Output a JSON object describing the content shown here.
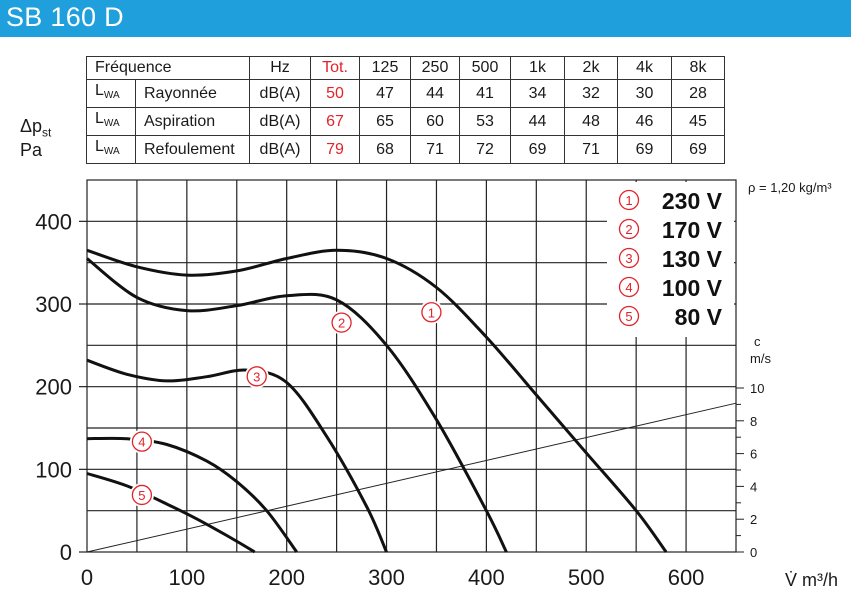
{
  "title": "SB 160 D",
  "table": {
    "header": [
      "Fréquence",
      "Hz",
      "Tot.",
      "125",
      "250",
      "500",
      "1k",
      "2k",
      "4k",
      "8k"
    ],
    "rows": [
      {
        "sym": "L",
        "sub": "WA",
        "name": "Rayonnée",
        "unit": "dB(A)",
        "tot": "50",
        "values": [
          "47",
          "44",
          "41",
          "34",
          "32",
          "30",
          "28"
        ]
      },
      {
        "sym": "L",
        "sub": "WA",
        "name": "Aspiration",
        "unit": "dB(A)",
        "tot": "67",
        "values": [
          "65",
          "60",
          "53",
          "44",
          "48",
          "46",
          "45"
        ]
      },
      {
        "sym": "L",
        "sub": "WA",
        "name": "Refoulement",
        "unit": "dB(A)",
        "tot": "79",
        "values": [
          "68",
          "71",
          "72",
          "69",
          "71",
          "69",
          "69"
        ]
      }
    ]
  },
  "y_axis_label": {
    "symbol": "Δp",
    "sub": "st",
    "unit": "Pa"
  },
  "density_note": "ρ = 1,20 kg/m³",
  "x_axis_label": "V̇ m³/h",
  "velocity_axis_label": {
    "symbol": "c",
    "unit": "m/s"
  },
  "colors": {
    "title_bar": "#1f9fdc",
    "accent_red": "#e0242b",
    "curve": "#111111",
    "grid": "#222222"
  },
  "chart_data": {
    "type": "line",
    "xlabel": "V̇ m³/h",
    "ylabel": "Δpst Pa",
    "xlim": [
      0,
      650
    ],
    "ylim": [
      0,
      450
    ],
    "x_ticks": [
      0,
      100,
      200,
      300,
      400,
      500,
      600
    ],
    "y_ticks": [
      0,
      100,
      200,
      300,
      400
    ],
    "grid": true,
    "legend_position": "top-right",
    "series": [
      {
        "name": "230 V",
        "marker": "1",
        "x": [
          0,
          50,
          100,
          150,
          200,
          250,
          300,
          350,
          400,
          450,
          500,
          550,
          580
        ],
        "y": [
          365,
          345,
          335,
          340,
          355,
          365,
          355,
          320,
          260,
          190,
          120,
          50,
          0
        ]
      },
      {
        "name": "170 V",
        "marker": "2",
        "x": [
          0,
          50,
          100,
          150,
          200,
          250,
          300,
          350,
          400,
          420
        ],
        "y": [
          355,
          308,
          292,
          298,
          310,
          305,
          250,
          160,
          50,
          0
        ]
      },
      {
        "name": "130 V",
        "marker": "3",
        "x": [
          0,
          40,
          80,
          120,
          160,
          200,
          240,
          280,
          300
        ],
        "y": [
          232,
          215,
          207,
          212,
          220,
          205,
          140,
          55,
          0
        ]
      },
      {
        "name": "100 V",
        "marker": "4",
        "x": [
          0,
          40,
          80,
          120,
          150,
          180,
          210
        ],
        "y": [
          137,
          137,
          130,
          110,
          85,
          50,
          0
        ]
      },
      {
        "name": "80 V",
        "marker": "5",
        "x": [
          0,
          40,
          80,
          110,
          140,
          168
        ],
        "y": [
          95,
          80,
          58,
          40,
          20,
          0
        ]
      }
    ],
    "system_line": {
      "x": [
        0,
        650
      ],
      "y": [
        0,
        180
      ]
    },
    "velocity_axis": {
      "label": "c m/s",
      "ticks": [
        0,
        2,
        4,
        6,
        8,
        10
      ]
    }
  }
}
